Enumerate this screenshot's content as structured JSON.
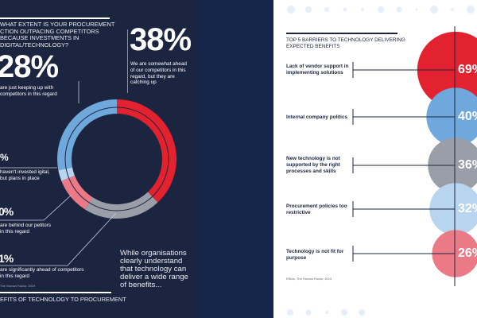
{
  "left": {
    "question": "WHAT EXTENT IS YOUR PROCUREMENT CTION OUTPACING COMPETITORS BECAUSE INVESTMENTS IN DIGITAL/TECHNOLOGY?",
    "stat_38": {
      "value": "38%",
      "text": "We are somewhat ahead of our competitors in this regard, but they are catching up"
    },
    "stat_28": {
      "value": "28%",
      "text": "are just keeping up with competitors in this regard"
    },
    "stat_a": {
      "value": "%",
      "text": "haven't invested igital, but plans in place"
    },
    "stat_b": {
      "value": "0%",
      "text": "are behind our petitors in this regard"
    },
    "stat_c": {
      "value": "1%",
      "text": "are significantly ahead of competitors in this regard"
    },
    "source": "The Human Factor, 2019",
    "quote": "While organisations clearly understand that technology can deliver a wide range of benefits...",
    "footer": "EFITS OF TECHNOLOGY TO PROCUREMENT"
  },
  "right": {
    "title": "TOP 5 BARRIERS TO TECHNOLOGY DELIVERING EXPECTED BENEFITS",
    "source": "Efficio, The Human Factor, 2019"
  },
  "chart_data": [
    {
      "type": "pie",
      "variant": "donut",
      "slices": [
        {
          "label": "We are somewhat ahead of our competitors in this regard, but they are catching up",
          "value": 38,
          "color": "#e3222f"
        },
        {
          "label": "are significantly ahead of competitors in this regard",
          "value": 21,
          "color": "#9a9ea8"
        },
        {
          "label": "are behind our petitors in this regard",
          "value": 10,
          "color": "#ec7a86"
        },
        {
          "label": "haven't invested igital, but plans in place",
          "value": 3,
          "color": "#b8d4ee"
        },
        {
          "label": "are just keeping up with competitors in this regard",
          "value": 28,
          "color": "#6fa8dc"
        }
      ]
    },
    {
      "type": "bubble",
      "title": "TOP 5 BARRIERS TO TECHNOLOGY DELIVERING EXPECTED BENEFITS",
      "items": [
        {
          "label": "Lack of vendor support in implementing solutions",
          "value": 69,
          "display": "69%",
          "color": "#e3222f"
        },
        {
          "label": "Internal company politics",
          "value": 40,
          "display": "40%",
          "color": "#6fa8dc"
        },
        {
          "label": "New technology is not supported by the right processes and skills",
          "value": 36,
          "display": "36%",
          "color": "#9a9ea8"
        },
        {
          "label": "Procurement policies too restrictive",
          "value": 32,
          "display": "32%",
          "color": "#b8d4ee"
        },
        {
          "label": "Technology is not fit for purpose",
          "value": 26,
          "display": "26%",
          "color": "#ec7a86"
        }
      ]
    }
  ]
}
